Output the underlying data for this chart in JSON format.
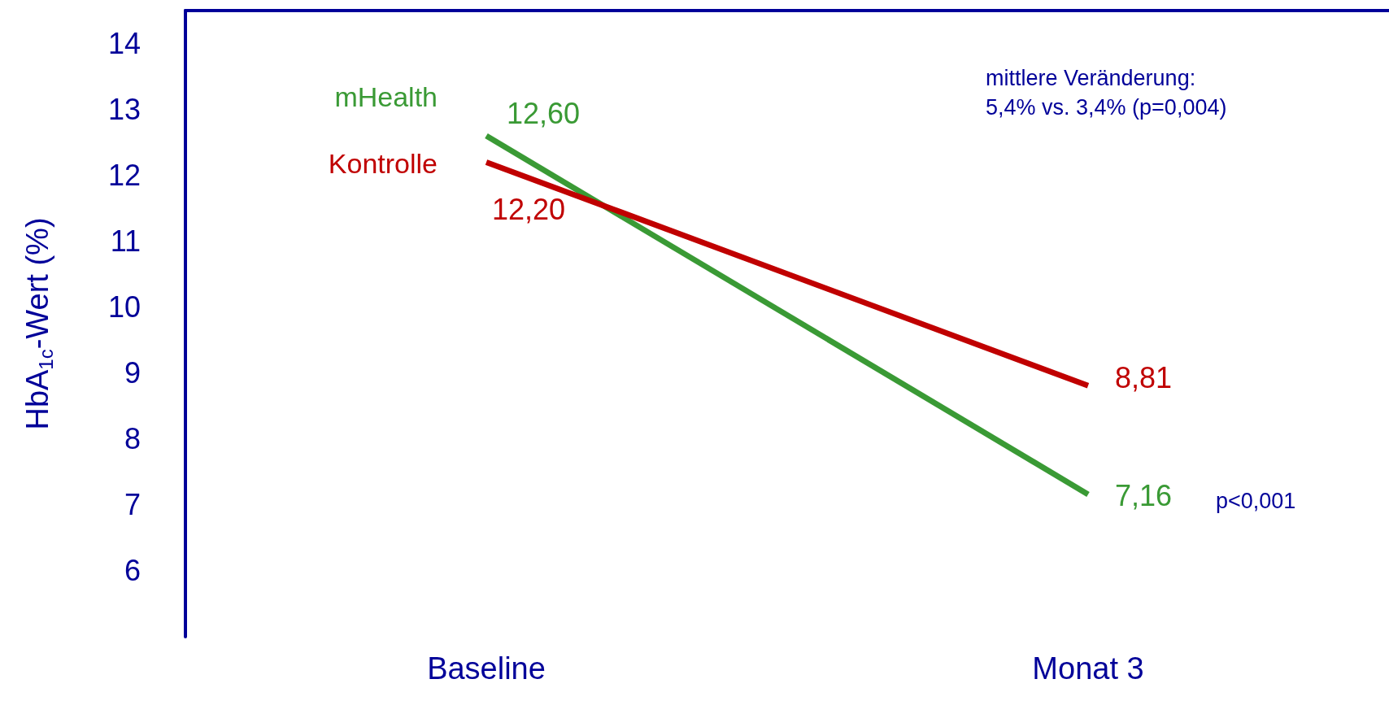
{
  "chart_data": {
    "type": "line",
    "ylabel": "HbA$_{1c}$-Wert (%)",
    "categories": [
      "Baseline",
      "Monat 3"
    ],
    "series": [
      {
        "name": "mHealth",
        "color": "#3a9a35",
        "values": [
          12.6,
          7.16
        ],
        "value_labels": [
          "12,60",
          "7,16"
        ]
      },
      {
        "name": "Kontrolle",
        "color": "#c00000",
        "values": [
          12.2,
          8.81
        ],
        "value_labels": [
          "12,20",
          "8,81"
        ]
      }
    ],
    "ylim": [
      5,
      14.5
    ],
    "yticks": [
      6,
      7,
      8,
      9,
      10,
      11,
      12,
      13,
      14
    ],
    "grid": false,
    "marker": "none",
    "line_style": "solid",
    "annotations": [
      "mittlere Veränderung:\n5,4% vs. 3,4% (p=0,004)",
      "p<0,001"
    ]
  }
}
